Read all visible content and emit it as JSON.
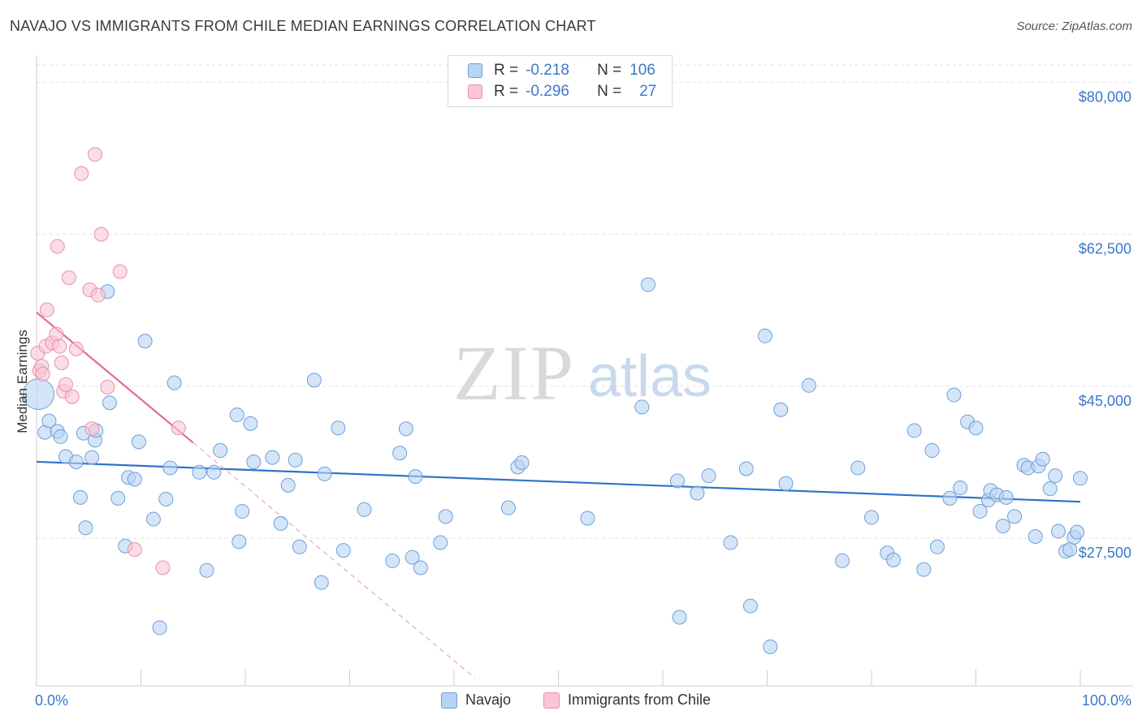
{
  "title": "NAVAJO VS IMMIGRANTS FROM CHILE MEDIAN EARNINGS CORRELATION CHART",
  "source": "Source: ZipAtlas.com",
  "watermark": {
    "zip": "ZIP",
    "atlas": "atlas"
  },
  "legend": {
    "navajo": {
      "r_label": "R =",
      "r_value": "-0.218",
      "n_label": "N =",
      "n_value": "106"
    },
    "chile": {
      "r_label": "R =",
      "r_value": "-0.296",
      "n_label": "N =",
      "n_value": "27"
    }
  },
  "colors": {
    "navajo_fill": "#b8d3f3",
    "navajo_stroke": "#6f9fd8",
    "navajo_line": "#2f72c9",
    "chile_fill": "#f8c6d4",
    "chile_stroke": "#e890ab",
    "chile_line": "#e36b94",
    "axis_label": "#3a78c9",
    "grid": "#e2e2e2"
  },
  "chart_data": {
    "type": "scatter",
    "title": "NAVAJO VS IMMIGRANTS FROM CHILE MEDIAN EARNINGS CORRELATION CHART",
    "xlabel": "",
    "ylabel": "Median Earnings",
    "x_tick_labels": [
      "0.0%",
      "100.0%"
    ],
    "y_ticks": [
      27500,
      45000,
      62500,
      80000
    ],
    "y_tick_labels": [
      "$27,500",
      "$45,000",
      "$62,500",
      "$80,000"
    ],
    "xlim": [
      0,
      100
    ],
    "ylim": [
      10500,
      82000
    ],
    "legend_position": "top-center",
    "series": [
      {
        "name": "Navajo",
        "r": -0.218,
        "n": 106,
        "trend": {
          "x0": 0,
          "y0": 36300,
          "x1": 100,
          "y1": 31700
        },
        "points": [
          {
            "x": 0.2,
            "y": 44100,
            "size": "large"
          },
          {
            "x": 0.8,
            "y": 39700
          },
          {
            "x": 1.2,
            "y": 41000
          },
          {
            "x": 2.0,
            "y": 39800
          },
          {
            "x": 2.3,
            "y": 39200
          },
          {
            "x": 2.8,
            "y": 36900
          },
          {
            "x": 3.8,
            "y": 36300
          },
          {
            "x": 4.2,
            "y": 32200
          },
          {
            "x": 4.5,
            "y": 39600
          },
          {
            "x": 4.7,
            "y": 28700
          },
          {
            "x": 5.6,
            "y": 38800
          },
          {
            "x": 5.3,
            "y": 36800
          },
          {
            "x": 5.7,
            "y": 39900
          },
          {
            "x": 6.8,
            "y": 55900
          },
          {
            "x": 7.0,
            "y": 43100
          },
          {
            "x": 7.8,
            "y": 32100
          },
          {
            "x": 8.5,
            "y": 26600
          },
          {
            "x": 8.8,
            "y": 34500
          },
          {
            "x": 9.4,
            "y": 34300
          },
          {
            "x": 9.8,
            "y": 38600
          },
          {
            "x": 10.4,
            "y": 50200
          },
          {
            "x": 11.2,
            "y": 29700
          },
          {
            "x": 11.8,
            "y": 17200
          },
          {
            "x": 12.4,
            "y": 32000
          },
          {
            "x": 12.8,
            "y": 35600
          },
          {
            "x": 13.2,
            "y": 45400
          },
          {
            "x": 15.6,
            "y": 35100
          },
          {
            "x": 16.3,
            "y": 23800
          },
          {
            "x": 17.0,
            "y": 35100
          },
          {
            "x": 17.6,
            "y": 37600
          },
          {
            "x": 19.2,
            "y": 41700
          },
          {
            "x": 19.4,
            "y": 27100
          },
          {
            "x": 19.7,
            "y": 30600
          },
          {
            "x": 20.5,
            "y": 40700
          },
          {
            "x": 20.8,
            "y": 36300
          },
          {
            "x": 22.6,
            "y": 36800
          },
          {
            "x": 23.4,
            "y": 29200
          },
          {
            "x": 24.1,
            "y": 33600
          },
          {
            "x": 25.2,
            "y": 26500
          },
          {
            "x": 24.8,
            "y": 36500
          },
          {
            "x": 26.6,
            "y": 45700
          },
          {
            "x": 27.3,
            "y": 22400
          },
          {
            "x": 27.6,
            "y": 34900
          },
          {
            "x": 28.9,
            "y": 40200
          },
          {
            "x": 29.4,
            "y": 26100
          },
          {
            "x": 31.4,
            "y": 30800
          },
          {
            "x": 34.1,
            "y": 24900
          },
          {
            "x": 34.8,
            "y": 37300
          },
          {
            "x": 35.4,
            "y": 40100
          },
          {
            "x": 36.0,
            "y": 25300
          },
          {
            "x": 36.3,
            "y": 34600
          },
          {
            "x": 36.8,
            "y": 24100
          },
          {
            "x": 38.7,
            "y": 27000
          },
          {
            "x": 39.2,
            "y": 30000
          },
          {
            "x": 45.2,
            "y": 31000
          },
          {
            "x": 46.1,
            "y": 35700
          },
          {
            "x": 46.5,
            "y": 36200
          },
          {
            "x": 52.8,
            "y": 29800
          },
          {
            "x": 58.0,
            "y": 42600
          },
          {
            "x": 58.6,
            "y": 56700
          },
          {
            "x": 61.4,
            "y": 34100
          },
          {
            "x": 61.6,
            "y": 18400
          },
          {
            "x": 63.3,
            "y": 32700
          },
          {
            "x": 64.4,
            "y": 34700
          },
          {
            "x": 66.5,
            "y": 27000
          },
          {
            "x": 68.0,
            "y": 35500
          },
          {
            "x": 68.4,
            "y": 19700
          },
          {
            "x": 69.8,
            "y": 50800
          },
          {
            "x": 70.3,
            "y": 15000
          },
          {
            "x": 71.3,
            "y": 42300
          },
          {
            "x": 71.8,
            "y": 33800
          },
          {
            "x": 74.0,
            "y": 45100
          },
          {
            "x": 77.2,
            "y": 24900
          },
          {
            "x": 78.7,
            "y": 35600
          },
          {
            "x": 80.0,
            "y": 29900
          },
          {
            "x": 81.5,
            "y": 25800
          },
          {
            "x": 82.1,
            "y": 25000
          },
          {
            "x": 84.1,
            "y": 39900
          },
          {
            "x": 85.0,
            "y": 23900
          },
          {
            "x": 85.8,
            "y": 37600
          },
          {
            "x": 86.3,
            "y": 26500
          },
          {
            "x": 87.5,
            "y": 32100
          },
          {
            "x": 87.9,
            "y": 44000
          },
          {
            "x": 88.5,
            "y": 33300
          },
          {
            "x": 89.2,
            "y": 40900
          },
          {
            "x": 90.0,
            "y": 40200
          },
          {
            "x": 90.4,
            "y": 30600
          },
          {
            "x": 91.2,
            "y": 31900
          },
          {
            "x": 91.4,
            "y": 33000
          },
          {
            "x": 92.0,
            "y": 32500
          },
          {
            "x": 92.6,
            "y": 28900
          },
          {
            "x": 92.9,
            "y": 32200
          },
          {
            "x": 93.7,
            "y": 30000
          },
          {
            "x": 94.6,
            "y": 35900
          },
          {
            "x": 95.0,
            "y": 35600
          },
          {
            "x": 95.7,
            "y": 27700
          },
          {
            "x": 96.0,
            "y": 35800
          },
          {
            "x": 96.4,
            "y": 36600
          },
          {
            "x": 97.1,
            "y": 33200
          },
          {
            "x": 97.6,
            "y": 34700
          },
          {
            "x": 97.9,
            "y": 28300
          },
          {
            "x": 98.6,
            "y": 26000
          },
          {
            "x": 99.0,
            "y": 26200
          },
          {
            "x": 99.4,
            "y": 27600
          },
          {
            "x": 99.7,
            "y": 28200
          },
          {
            "x": 100.0,
            "y": 34400
          }
        ]
      },
      {
        "name": "Immigrants from Chile",
        "r": -0.296,
        "n": 27,
        "trend": {
          "x0": 0,
          "y0": 53500,
          "x1": 15,
          "y1": 38500
        },
        "trend_extension": {
          "x0": 15,
          "y0": 38500,
          "x1": 42,
          "y1": 11400
        },
        "points": [
          {
            "x": 0.1,
            "y": 48800
          },
          {
            "x": 0.3,
            "y": 46800
          },
          {
            "x": 0.5,
            "y": 47300
          },
          {
            "x": 0.6,
            "y": 46400
          },
          {
            "x": 1.0,
            "y": 53800
          },
          {
            "x": 0.9,
            "y": 49600
          },
          {
            "x": 1.5,
            "y": 50000
          },
          {
            "x": 1.9,
            "y": 51000
          },
          {
            "x": 2.0,
            "y": 61100
          },
          {
            "x": 2.2,
            "y": 49600
          },
          {
            "x": 2.4,
            "y": 47700
          },
          {
            "x": 2.6,
            "y": 44400
          },
          {
            "x": 2.8,
            "y": 45200
          },
          {
            "x": 3.1,
            "y": 57500
          },
          {
            "x": 3.4,
            "y": 43800
          },
          {
            "x": 3.8,
            "y": 49300
          },
          {
            "x": 4.3,
            "y": 69500
          },
          {
            "x": 5.1,
            "y": 56100
          },
          {
            "x": 5.3,
            "y": 40100
          },
          {
            "x": 5.6,
            "y": 71700
          },
          {
            "x": 5.9,
            "y": 55500
          },
          {
            "x": 6.2,
            "y": 62500
          },
          {
            "x": 6.8,
            "y": 44900
          },
          {
            "x": 8.0,
            "y": 58200
          },
          {
            "x": 9.4,
            "y": 26200
          },
          {
            "x": 12.1,
            "y": 24100
          },
          {
            "x": 13.6,
            "y": 40200
          }
        ]
      }
    ]
  }
}
